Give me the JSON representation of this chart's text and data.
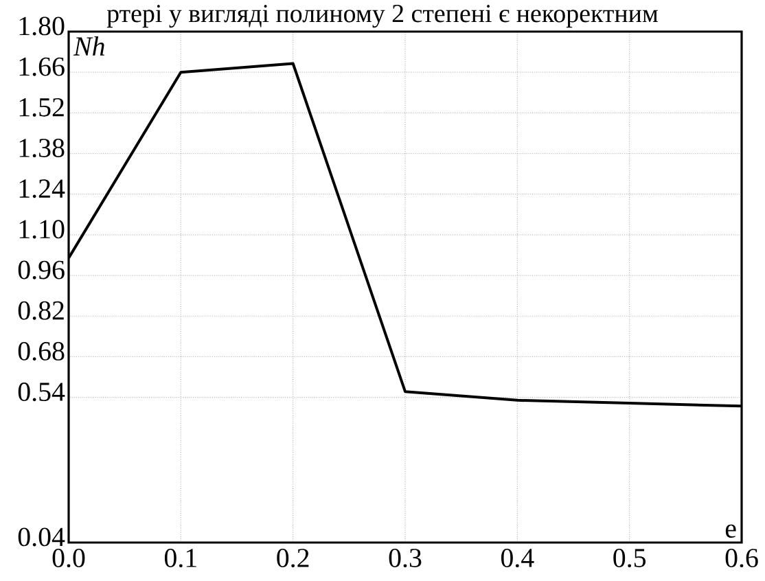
{
  "chart_data": {
    "type": "line",
    "title": "ртері у вигляді полиному 2 степені є некоректним",
    "xlabel": "e",
    "ylabel": "Nh",
    "x": [
      0.0,
      0.1,
      0.2,
      0.3,
      0.4,
      0.5,
      0.6
    ],
    "series": [
      {
        "color": "#000000",
        "values": [
          1.02,
          1.66,
          1.69,
          0.56,
          0.53,
          0.52,
          0.51
        ]
      }
    ],
    "xlim": [
      0.0,
      0.6
    ],
    "xticks": [
      {
        "value": 0.0,
        "label": "0.0"
      },
      {
        "value": 0.1,
        "label": "0.1"
      },
      {
        "value": 0.2,
        "label": "0.2"
      },
      {
        "value": 0.3,
        "label": "0.3"
      },
      {
        "value": 0.4,
        "label": "0.4"
      },
      {
        "value": 0.5,
        "label": "0.5"
      },
      {
        "value": 0.6,
        "label": "0.6"
      }
    ],
    "ylim": [
      0.04,
      1.8
    ],
    "yticks": [
      {
        "value": 0.04,
        "label": "0.04"
      },
      {
        "value": 0.54,
        "label": "0.54"
      },
      {
        "value": 0.68,
        "label": "0.68"
      },
      {
        "value": 0.82,
        "label": "0.82"
      },
      {
        "value": 0.96,
        "label": "0.96"
      },
      {
        "value": 1.1,
        "label": "1.10"
      },
      {
        "value": 1.24,
        "label": "1.24"
      },
      {
        "value": 1.38,
        "label": "1.38"
      },
      {
        "value": 1.52,
        "label": "1.52"
      },
      {
        "value": 1.66,
        "label": "1.66"
      },
      {
        "value": 1.8,
        "label": "1.80"
      }
    ],
    "grid": true,
    "marker": "none",
    "line_style": "solid"
  }
}
